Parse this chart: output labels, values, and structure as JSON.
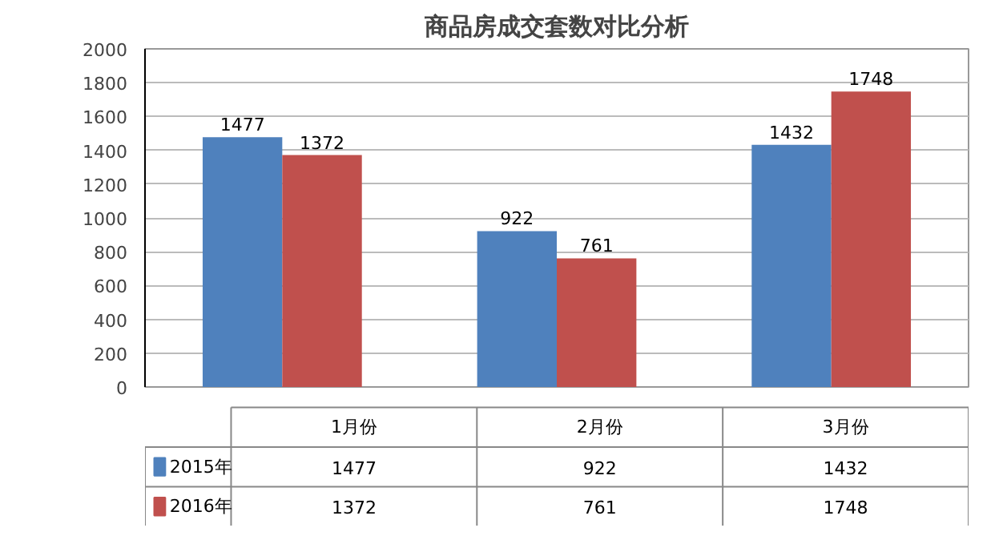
{
  "chart_data": {
    "type": "bar",
    "title": "商品房成交套数对比分析",
    "categories": [
      "1月份",
      "2月份",
      "3月份"
    ],
    "series": [
      {
        "name": "2015年",
        "color": "#4f81bd",
        "values": [
          1477,
          922,
          1432
        ],
        "value_labels": [
          "1477",
          "922",
          "1432"
        ]
      },
      {
        "name": "2016年",
        "color": "#c0504d",
        "values": [
          1372,
          761,
          1748
        ],
        "value_labels": [
          "1372",
          "761",
          "1748"
        ]
      }
    ],
    "ylim": [
      0,
      2000
    ],
    "yticks": [
      0,
      200,
      400,
      600,
      800,
      1000,
      1200,
      1400,
      1600,
      1800,
      2000
    ],
    "annotations": [
      "1477",
      "922",
      "1432",
      "1372",
      "761",
      "1748"
    ],
    "grid": "y",
    "legend": "bottom",
    "data_labels": true
  }
}
